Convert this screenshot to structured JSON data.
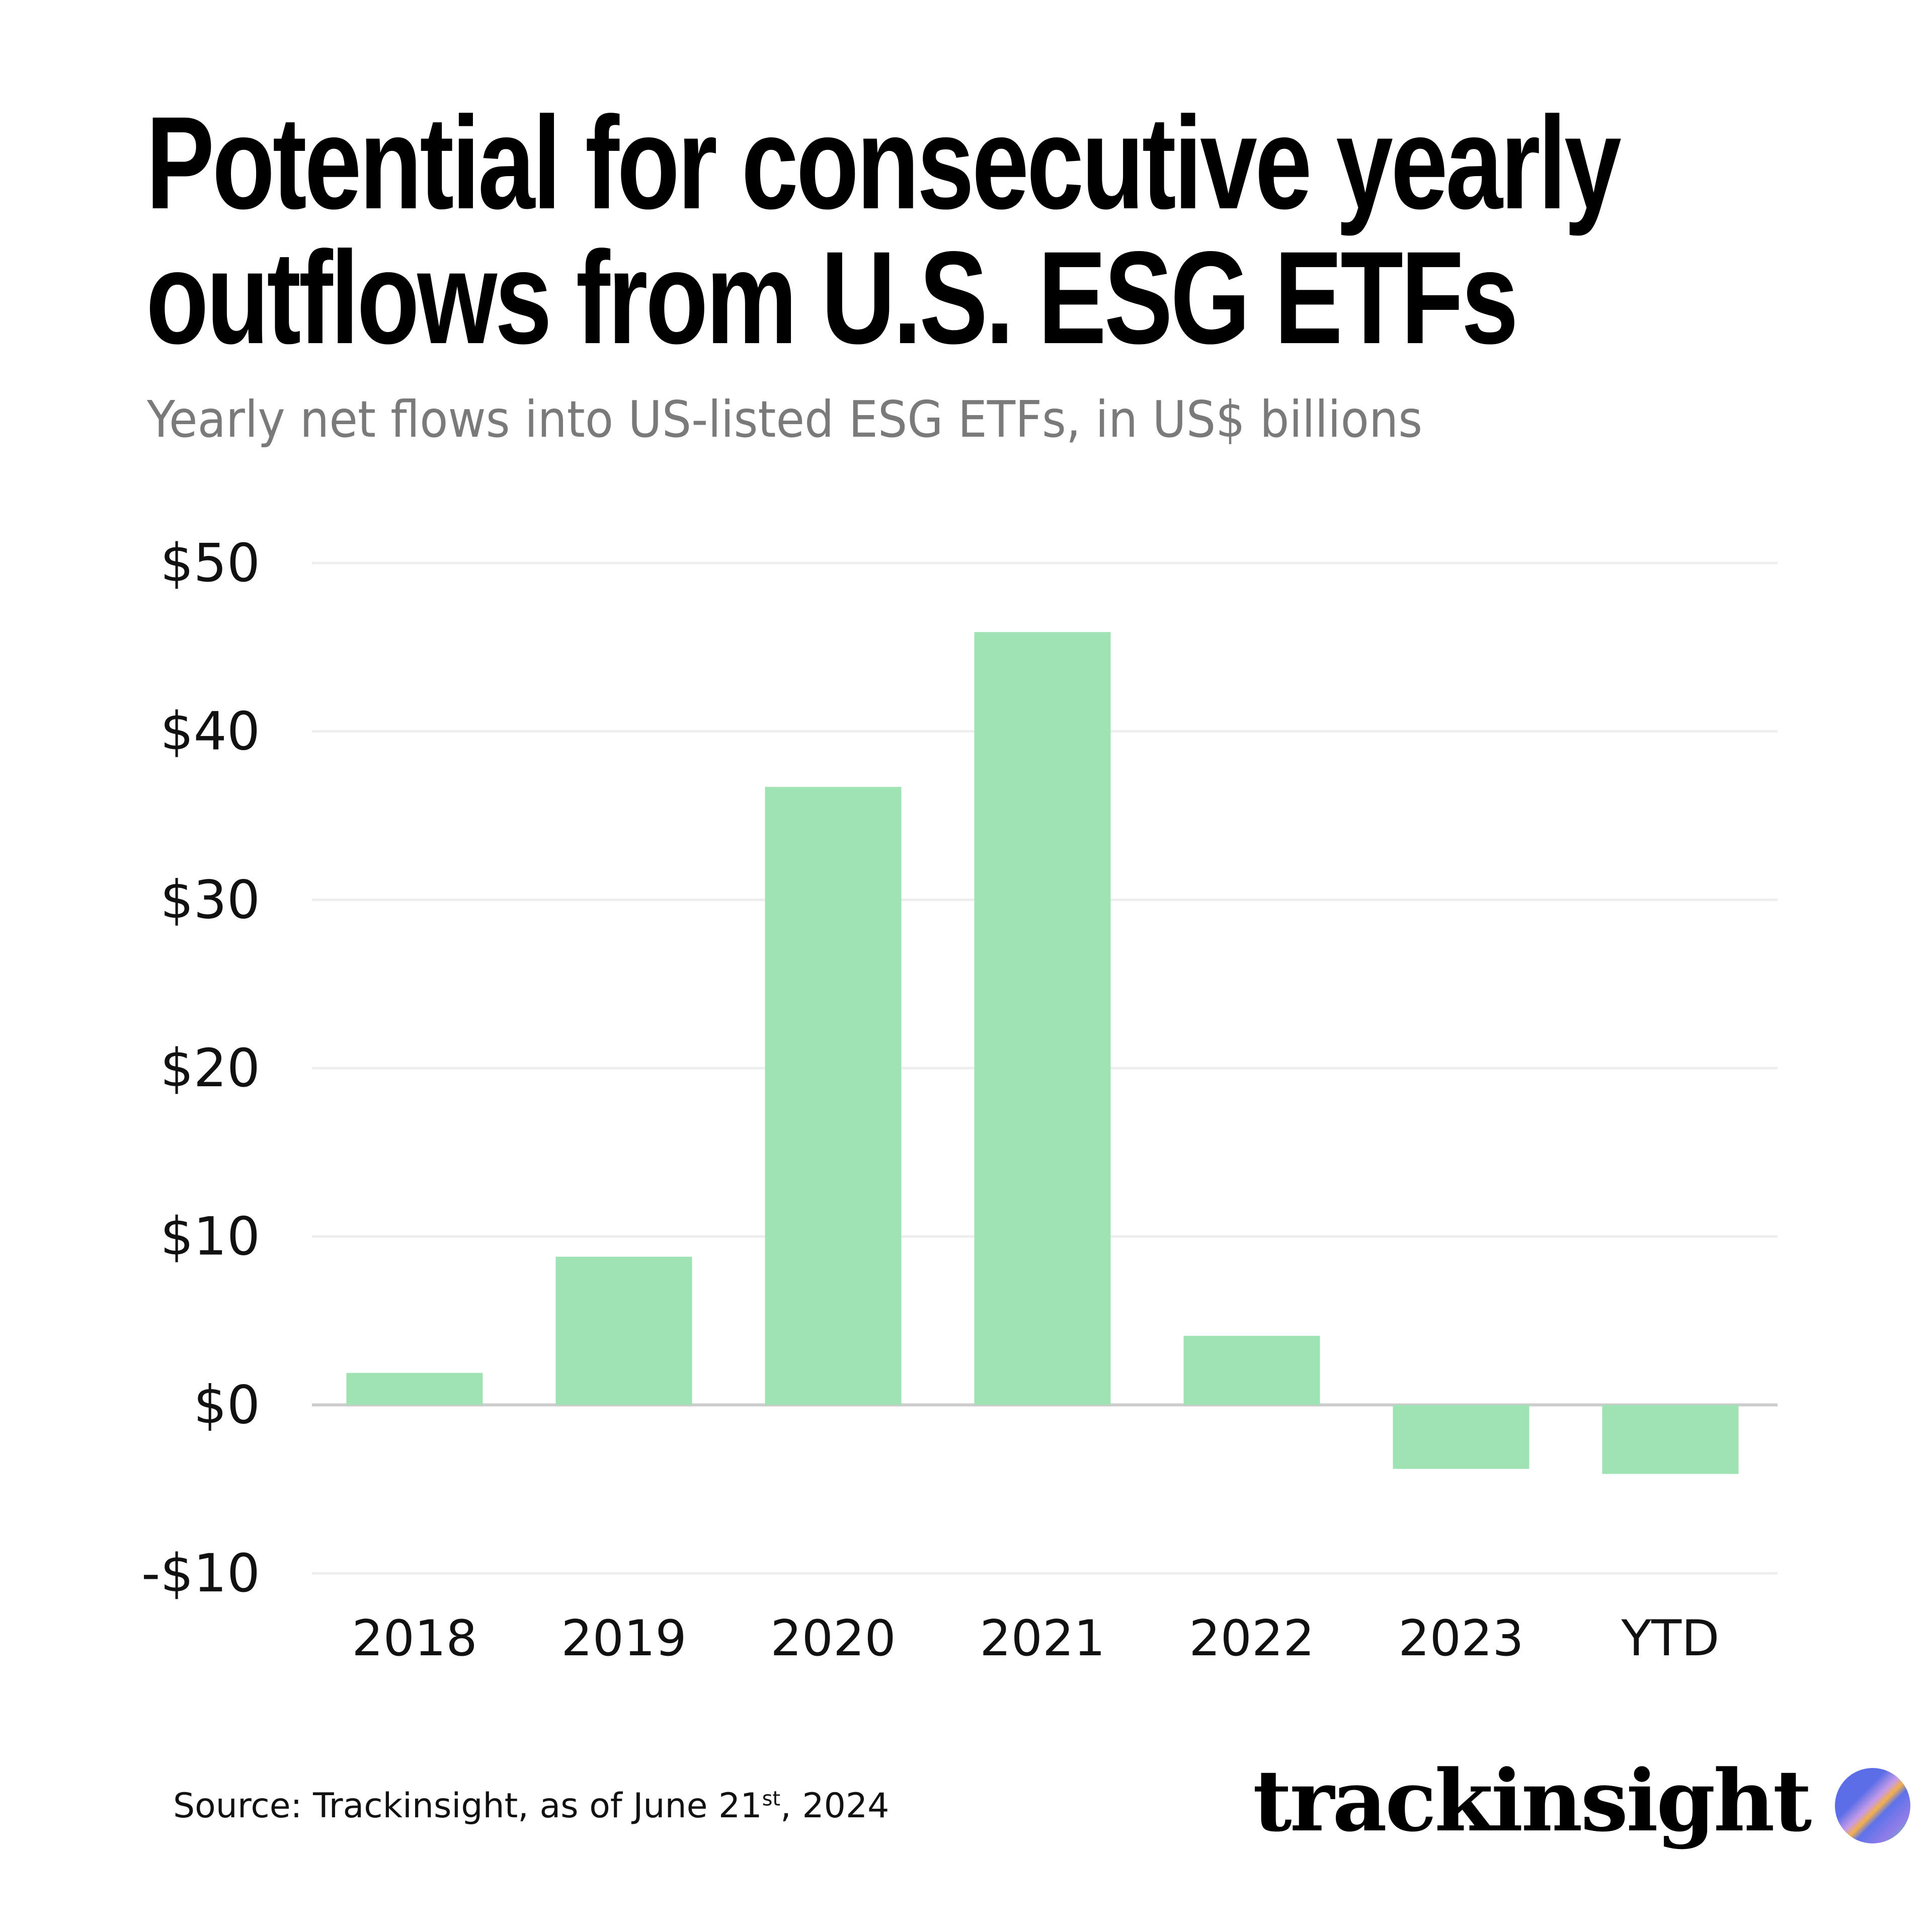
{
  "title_lines": [
    "Potential for consecutive yearly",
    "outflows from U.S. ESG ETFs"
  ],
  "subtitle": "Yearly net flows into US-listed ESG ETFs, in US$ billions",
  "source": {
    "prefix": "Source: Trackinsight, as of June 21",
    "sup": "st",
    "suffix": ", 2024"
  },
  "logo": {
    "text": "trackinsight",
    "icon": "gradient-circle-icon"
  },
  "colors": {
    "bar": "#9fe3b5",
    "grid": "#eeeeee",
    "zero_line": "#cccccc"
  },
  "chart_data": {
    "type": "bar",
    "title": "Potential for consecutive yearly outflows from U.S. ESG ETFs",
    "subtitle": "Yearly net flows into US-listed ESG ETFs, in US$ billions",
    "categories": [
      "2018",
      "2019",
      "2020",
      "2021",
      "2022",
      "2023",
      "YTD"
    ],
    "values": [
      1.9,
      8.8,
      36.7,
      45.9,
      4.1,
      -3.8,
      -4.1
    ],
    "ylim": [
      -10,
      50
    ],
    "yticks": [
      50,
      40,
      30,
      20,
      10,
      0,
      -10
    ],
    "ytick_labels": [
      "$50",
      "$40",
      "$30",
      "$20",
      "$10",
      "$0",
      "-$10"
    ],
    "grid": true,
    "xlabel": "",
    "ylabel": ""
  }
}
